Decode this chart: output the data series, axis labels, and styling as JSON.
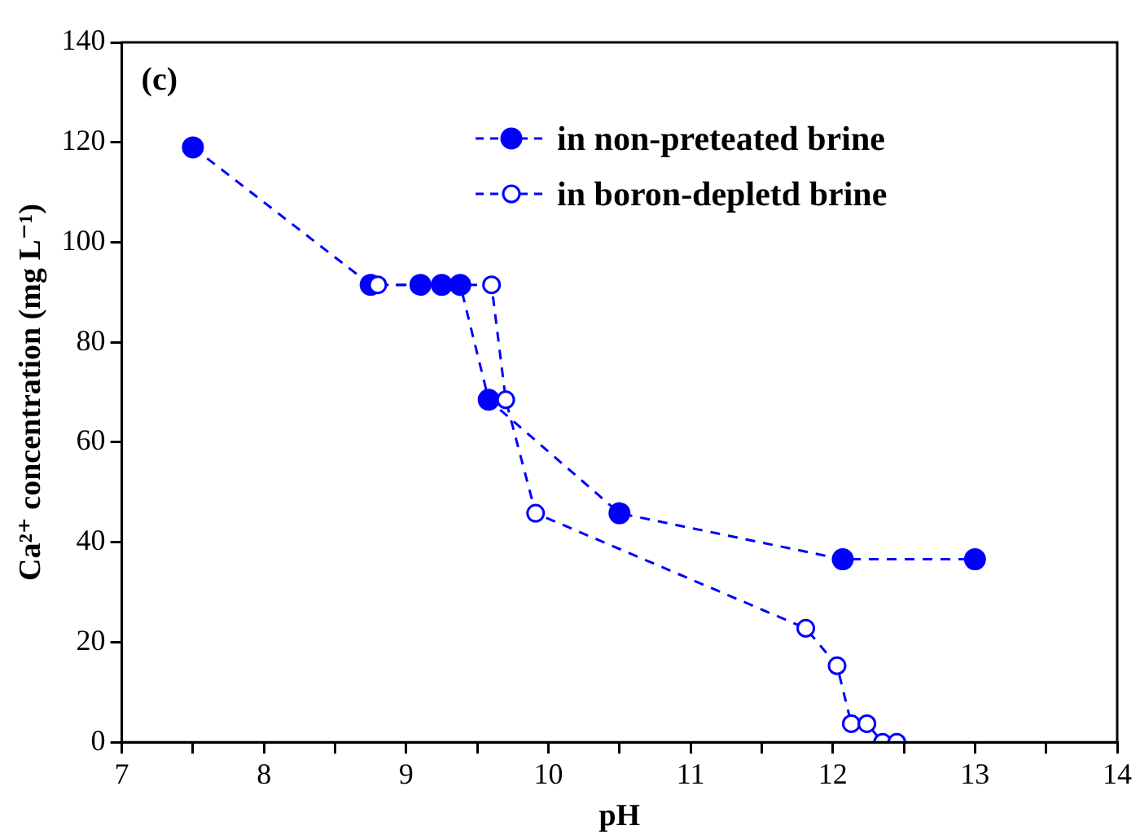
{
  "chart_data": {
    "type": "line",
    "xlabel": "pH",
    "ylabel": "Ca²⁺ concentration (mg L⁻¹)",
    "annotations": [
      "(c)"
    ],
    "series": [
      {
        "name": "in non-preteated brine",
        "color": "#0000ff",
        "marker": "circle",
        "x": [
          7.5,
          8.75,
          9.1,
          9.25,
          9.38,
          9.58,
          10.5,
          12.07,
          13.0
        ],
        "values": [
          119,
          91.5,
          91.5,
          91.5,
          91.5,
          68.5,
          45.8,
          36.6,
          36.6
        ]
      },
      {
        "name": "in boron-depletd brine",
        "color": "#0000ff",
        "marker": "circle",
        "x": [
          8.8,
          9.6,
          9.7,
          9.91,
          11.81,
          12.03,
          12.13,
          12.24,
          12.35,
          12.45
        ],
        "values": [
          91.5,
          91.5,
          68.5,
          45.8,
          22.8,
          15.3,
          3.7,
          3.7,
          0,
          0
        ]
      }
    ],
    "line_style": "dashed",
    "xlim": [
      7,
      14
    ],
    "xticks": [
      7,
      {
        "value": 7.5,
        "label": null
      },
      8,
      {
        "value": 8.5,
        "label": null
      },
      9,
      {
        "value": 9.5,
        "label": null
      },
      10,
      {
        "value": 10.5,
        "label": null
      },
      11,
      {
        "value": 11.5,
        "label": null
      },
      12,
      {
        "value": 12.5,
        "label": null
      },
      13,
      {
        "value": 13.5,
        "label": null
      },
      14
    ],
    "ylim": [
      0,
      140
    ],
    "yticks": [
      0,
      20,
      40,
      60,
      80,
      100,
      120,
      140
    ],
    "grid": false,
    "legend": "top"
  }
}
